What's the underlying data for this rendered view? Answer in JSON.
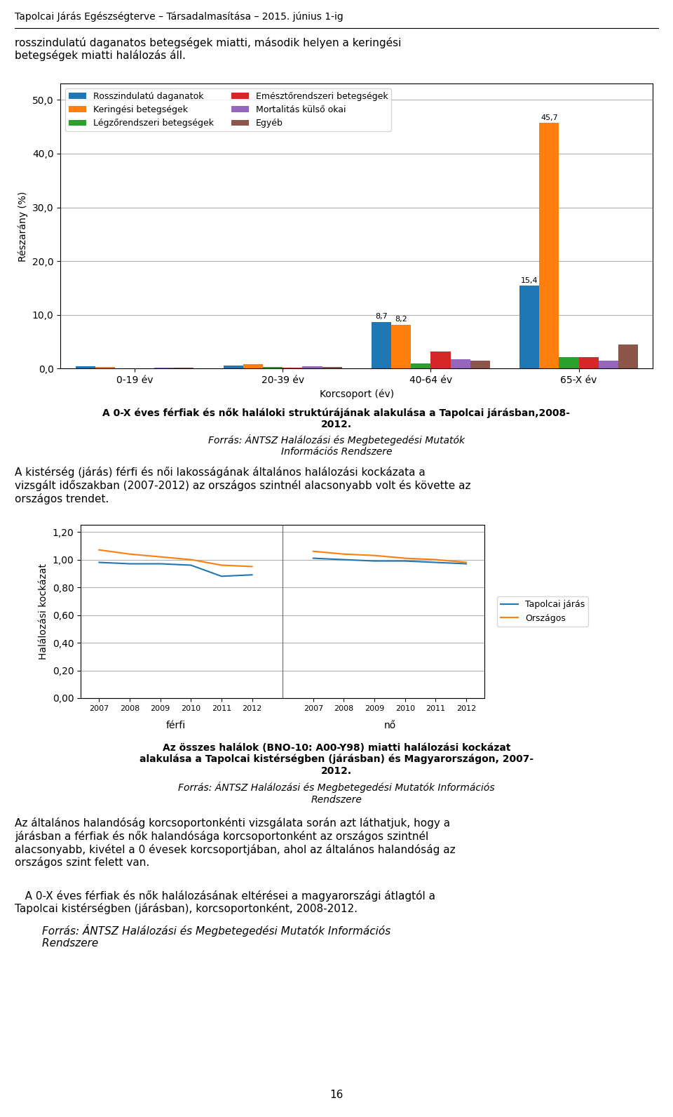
{
  "page_title": "Tapolcai Járás Egészségterve – Társadalmasítása – 2015. június 1-ig",
  "intro": "rosszindulatú daganatos betegségek miatti, második helyen a keringési\nbetegségek miatti halálozás áll.",
  "body_text_1": "A kistérség (járás) férfi és női lakosságának általános halálozási kockázata a\nvizsgált időszakban (2007-2012) az országos szintnél alacsonyabb volt és követte az\nországos trendet.",
  "body_text_2": "Az általános halandóság korcsoportonkénti vizsgálata során azt láthatjuk, hogy a\njárásban a férfiak és nők halandósága korcsoportonként az országos szintnél\nalacsonyabb, kivétel a 0 évesek korcsoportjában, ahol az általános halandóság az\nországos szint felett van.",
  "body_text_3": "   A 0-X éves férfiak és nők halálozásának eltérései a magyarországi átlagtól a\nTapolcai kistérségben (járásban), korcsoportonként, 2008-2012.",
  "source_note_3": "        Forrás: ÁNTSZ Halálozási és Megbetegedési Mutatók Információs\n        Rendszere",
  "page_number": "16",
  "chart_data": [
    {
      "type": "bar",
      "title": "A 0-X éves férfiak és nők haláloki struktúrájának alakulása a Tapolcai járásban,2008-\n2012.",
      "subtitle": "Forrás: ÁNTSZ Halálozási és Megbetegedési Mutatók\nInformációs Rendszere",
      "x_label": "Korcsoport (év)",
      "y_label": "Részarány (%)",
      "categories": [
        "0-19 év",
        "20-39 év",
        "40-64 év",
        "65-X év"
      ],
      "series": [
        {
          "name": "Rosszindulatú daganatok",
          "values": [
            0.4,
            0.6,
            8.7,
            15.4
          ],
          "value_labels": [
            null,
            null,
            "8,7",
            "15,4"
          ]
        },
        {
          "name": "Keringési betegségek",
          "values": [
            0.3,
            0.8,
            8.2,
            45.7
          ],
          "value_labels": [
            null,
            null,
            "8,2",
            "45,7"
          ]
        },
        {
          "name": "Légzőrendszeri betegségek",
          "values": [
            0.1,
            0.3,
            1.0,
            2.2
          ]
        },
        {
          "name": "Emésztőrendszeri betegségek",
          "values": [
            0.1,
            0.2,
            3.2,
            2.2
          ]
        },
        {
          "name": "Mortalitás külső okai",
          "values": [
            0.2,
            0.5,
            1.8,
            1.5
          ]
        },
        {
          "name": "Egyéb",
          "values": [
            0.2,
            0.3,
            1.5,
            4.5
          ]
        }
      ],
      "ylim": [
        0,
        53
      ],
      "yticks": [
        {
          "value": 0,
          "label": "0,0"
        },
        {
          "value": 10,
          "label": "10,0"
        },
        {
          "value": 20,
          "label": "20,0"
        },
        {
          "value": 30,
          "label": "30,0"
        },
        {
          "value": 40,
          "label": "40,0"
        },
        {
          "value": 50,
          "label": "50,0"
        }
      ],
      "grid": true,
      "legend": "upper left",
      "data_labels": true
    },
    {
      "type": "line",
      "title": "Az összes halálok (BNO-10: A00-Y98) miatti halálozási kockázat\nalakulása a Tapolcai kistérségben (járásban) és Magyarországon, 2007-\n2012.",
      "subtitle": "Forrás: ÁNTSZ Halálozási és Megbetegedési Mutatók Információs\nRendszere",
      "y_label": "Halálozási kockázat",
      "categories": [
        "2007",
        "2008",
        "2009",
        "2010",
        "2011",
        "2012",
        null,
        "2007",
        "2008",
        "2009",
        "2010",
        "2011",
        "2012"
      ],
      "annotations": [
        "férfi",
        "nő"
      ],
      "series": [
        {
          "name": "Tapolcai járás",
          "values": [
            0.98,
            0.97,
            0.97,
            0.96,
            0.88,
            0.89,
            null,
            1.01,
            1.0,
            0.99,
            0.99,
            0.98,
            0.97
          ]
        },
        {
          "name": "Országos",
          "values": [
            1.07,
            1.04,
            1.02,
            1.0,
            0.96,
            0.95,
            null,
            1.06,
            1.04,
            1.03,
            1.01,
            1.0,
            0.98
          ]
        }
      ],
      "ylim": [
        0.0,
        1.25
      ],
      "yticks": [
        {
          "value": 0.0,
          "label": "0,00"
        },
        {
          "value": 0.2,
          "label": "0,20"
        },
        {
          "value": 0.4,
          "label": "0,40"
        },
        {
          "value": 0.6,
          "label": "0,60"
        },
        {
          "value": 0.8,
          "label": "0,80"
        },
        {
          "value": 1.0,
          "label": "1,00"
        },
        {
          "value": 1.2,
          "label": "1,20"
        }
      ],
      "grid": true,
      "legend": "right"
    }
  ]
}
